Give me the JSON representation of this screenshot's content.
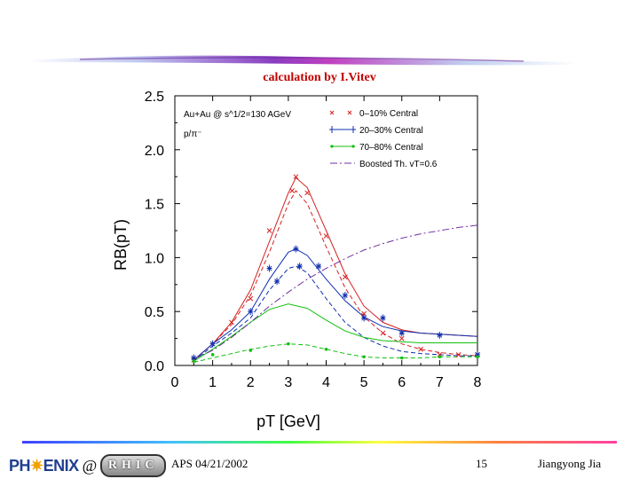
{
  "slide": {
    "calc_title": "calculation by I.Vitev",
    "footer": {
      "date": "APS 04/21/2002",
      "page": "15",
      "author": "Jiangyong Jia",
      "logo_text": "PHENIX",
      "logo_at": "@",
      "logo_rhic": "RHIC"
    }
  },
  "colors": {
    "red": "#d62020",
    "blue": "#1030b0",
    "green": "#10c010",
    "purple": "#7030a0",
    "title": "#c00000"
  },
  "chart_data": {
    "type": "line",
    "xlabel": "pT [GeV]",
    "ylabel": "RB(pT)",
    "xlim": [
      0,
      8
    ],
    "ylim": [
      0,
      2.5
    ],
    "xticks": [
      "0",
      "1",
      "2",
      "3",
      "4",
      "5",
      "6",
      "7",
      "8"
    ],
    "yticks": [
      "0.0",
      "0.5",
      "1.0",
      "1.5",
      "2.0",
      "2.5"
    ],
    "annotation_1": "Au+Au @ s^1/2=130 AGeV",
    "annotation_2": "p/π⁻",
    "legend": [
      {
        "label": "0–10% Central",
        "color": "red"
      },
      {
        "label": "20–30% Central",
        "color": "blue"
      },
      {
        "label": "70–80% Central",
        "color": "green"
      },
      {
        "label": "Boosted Th. vT=0.6",
        "color": "purple"
      }
    ],
    "series": [
      {
        "name": "0–10% Central (solid)",
        "color": "red",
        "dash": "",
        "x": [
          0.5,
          1,
          1.5,
          2,
          2.5,
          3,
          3.2,
          3.5,
          4,
          4.5,
          5,
          5.5,
          6,
          6.5,
          7,
          7.5,
          8
        ],
        "y": [
          0.05,
          0.2,
          0.4,
          0.7,
          1.15,
          1.6,
          1.74,
          1.65,
          1.25,
          0.85,
          0.55,
          0.4,
          0.33,
          0.3,
          0.29,
          0.28,
          0.27
        ]
      },
      {
        "name": "0–10% Central (dashed)",
        "color": "red",
        "dash": "5,3",
        "x": [
          0.5,
          1,
          1.5,
          2,
          2.5,
          3,
          3.2,
          3.5,
          4,
          4.5,
          5,
          5.5,
          6,
          6.5,
          7,
          7.5,
          8
        ],
        "y": [
          0.05,
          0.2,
          0.38,
          0.65,
          1.05,
          1.5,
          1.62,
          1.5,
          1.1,
          0.72,
          0.45,
          0.3,
          0.2,
          0.15,
          0.12,
          0.1,
          0.09
        ]
      },
      {
        "name": "20–30% Central (solid)",
        "color": "blue",
        "dash": "",
        "x": [
          0.5,
          1,
          1.5,
          2,
          2.5,
          3,
          3.2,
          3.5,
          4,
          4.5,
          5,
          5.5,
          6,
          6.5,
          7,
          7.5,
          8
        ],
        "y": [
          0.05,
          0.2,
          0.33,
          0.5,
          0.8,
          1.05,
          1.08,
          1.02,
          0.8,
          0.6,
          0.45,
          0.36,
          0.32,
          0.3,
          0.29,
          0.28,
          0.27
        ]
      },
      {
        "name": "20–30% Central (dashed)",
        "color": "blue",
        "dash": "5,3",
        "x": [
          0.5,
          1,
          1.5,
          2,
          2.5,
          3,
          3.2,
          3.5,
          4,
          4.5,
          5,
          5.5,
          6,
          6.5,
          7,
          7.5,
          8
        ],
        "y": [
          0.04,
          0.18,
          0.3,
          0.44,
          0.7,
          0.9,
          0.92,
          0.86,
          0.62,
          0.4,
          0.26,
          0.18,
          0.13,
          0.11,
          0.1,
          0.09,
          0.09
        ]
      },
      {
        "name": "70–80% Central (solid)",
        "color": "green",
        "dash": "",
        "x": [
          0.5,
          1,
          1.5,
          2,
          2.5,
          3,
          3.5,
          4,
          4.5,
          5,
          5.5,
          6,
          6.5,
          7,
          7.5,
          8
        ],
        "y": [
          0.04,
          0.15,
          0.27,
          0.4,
          0.52,
          0.57,
          0.53,
          0.42,
          0.32,
          0.26,
          0.23,
          0.22,
          0.21,
          0.21,
          0.21,
          0.21
        ]
      },
      {
        "name": "70–80% Central (dashed)",
        "color": "green",
        "dash": "5,3",
        "x": [
          0.5,
          1,
          1.5,
          2,
          2.5,
          3,
          3.5,
          4,
          4.5,
          5,
          5.5,
          6,
          6.5,
          7,
          7.5,
          8
        ],
        "y": [
          0.03,
          0.07,
          0.11,
          0.15,
          0.18,
          0.2,
          0.19,
          0.15,
          0.11,
          0.08,
          0.07,
          0.07,
          0.07,
          0.08,
          0.08,
          0.08
        ]
      },
      {
        "name": "Boosted Th. vT=0.6",
        "color": "purple",
        "dash": "8,3,2,3",
        "x": [
          0.5,
          1,
          1.5,
          2,
          2.5,
          3,
          3.5,
          4,
          4.5,
          5,
          5.5,
          6,
          6.5,
          7,
          7.5,
          8
        ],
        "y": [
          0.06,
          0.14,
          0.26,
          0.4,
          0.55,
          0.68,
          0.8,
          0.9,
          0.99,
          1.07,
          1.13,
          1.18,
          1.22,
          1.25,
          1.28,
          1.3
        ]
      }
    ],
    "markers": [
      {
        "color": "red",
        "symbol": "x",
        "x": [
          0.5,
          1,
          1.5,
          2,
          2.5,
          3.1,
          3.2,
          3.5,
          4,
          4.5,
          5,
          5.5,
          6,
          6.5,
          7,
          7.5,
          8
        ],
        "y": [
          0.05,
          0.2,
          0.4,
          0.62,
          1.25,
          1.62,
          1.75,
          1.6,
          1.2,
          0.82,
          0.48,
          0.3,
          0.25,
          0.15,
          0.1,
          0.1,
          0.1
        ]
      },
      {
        "color": "blue",
        "symbol": "star",
        "x": [
          0.5,
          1,
          2,
          2.5,
          2.7,
          3.2,
          3.3,
          3.8,
          4.5,
          5,
          5.5,
          6,
          7,
          8
        ],
        "y": [
          0.07,
          0.2,
          0.5,
          0.9,
          0.78,
          1.08,
          0.92,
          0.92,
          0.65,
          0.44,
          0.44,
          0.3,
          0.28,
          0.1
        ]
      },
      {
        "color": "green",
        "symbol": "dot",
        "x": [
          0.5,
          1,
          2,
          3,
          4,
          5,
          6,
          7,
          8
        ],
        "y": [
          0.04,
          0.1,
          0.14,
          0.2,
          0.15,
          0.08,
          0.07,
          0.08,
          0.08
        ]
      }
    ]
  }
}
